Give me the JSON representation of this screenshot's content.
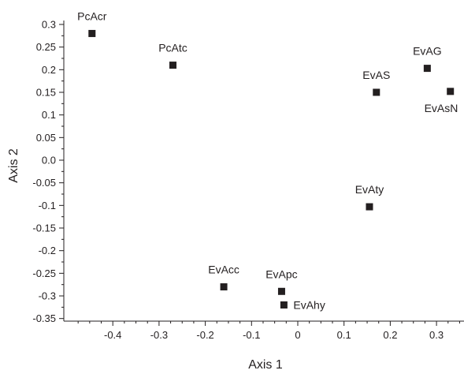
{
  "chart_data": {
    "type": "scatter",
    "title": "",
    "xlabel": "Axis 1",
    "ylabel": "Axis 2",
    "xlim": [
      -0.5,
      0.33
    ],
    "ylim": [
      -0.36,
      0.31
    ],
    "x_ticks": [
      "-0.4",
      "-0.3",
      "-0.2",
      "-0.1",
      "0",
      "0.1",
      "0.2",
      "0.3"
    ],
    "y_ticks": [
      "0.3",
      "0.25",
      "0.2",
      "0.15",
      "0.1",
      "0.05",
      "0.0",
      "-0.05",
      "-0.1",
      "-0.15",
      "-0.2",
      "-0.25",
      "-0.3",
      "-0.35"
    ],
    "grid": false,
    "marker": "square",
    "marker_color": "#231f20",
    "points": [
      {
        "label": "PcAcr",
        "x": -0.445,
        "y": 0.28
      },
      {
        "label": "PcAtc",
        "x": -0.27,
        "y": 0.21
      },
      {
        "label": "EvAG",
        "x": 0.28,
        "y": 0.203
      },
      {
        "label": "EvAS",
        "x": 0.17,
        "y": 0.15
      },
      {
        "label": "EvAsN",
        "x": 0.33,
        "y": 0.152
      },
      {
        "label": "EvAty",
        "x": 0.155,
        "y": -0.103
      },
      {
        "label": "EvAcc",
        "x": -0.16,
        "y": -0.28
      },
      {
        "label": "EvApc",
        "x": -0.035,
        "y": -0.29
      },
      {
        "label": "EvAhy",
        "x": -0.03,
        "y": -0.32
      }
    ]
  }
}
